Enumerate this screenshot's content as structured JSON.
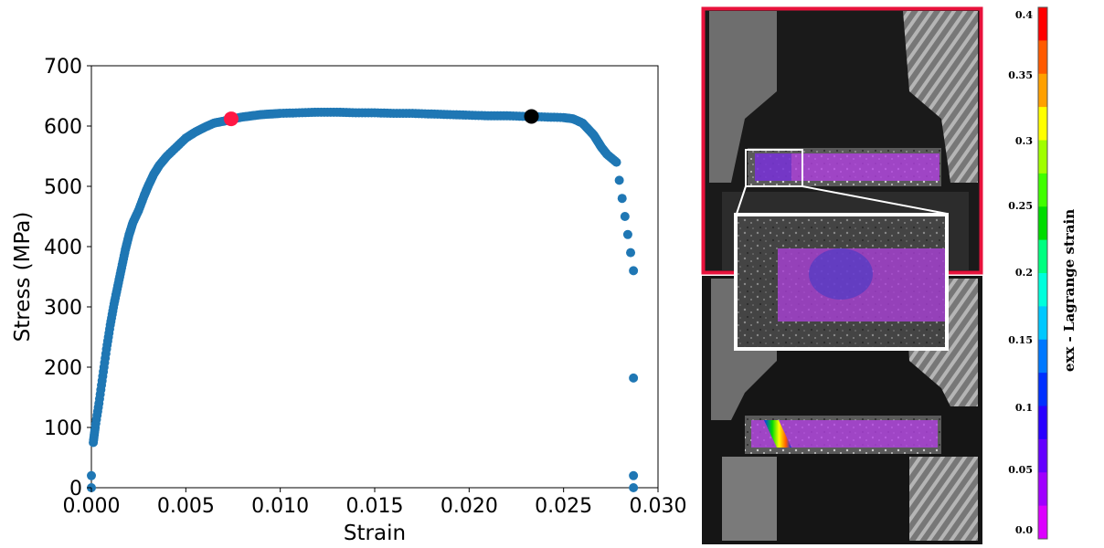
{
  "chart_data": {
    "type": "scatter",
    "xlabel": "Strain",
    "ylabel": "Stress (MPa)",
    "xlim": [
      0.0,
      0.03
    ],
    "ylim": [
      0,
      700
    ],
    "x_ticks": [
      "0.000",
      "0.005",
      "0.010",
      "0.015",
      "0.020",
      "0.025",
      "0.030"
    ],
    "y_ticks": [
      "0",
      "100",
      "200",
      "300",
      "400",
      "500",
      "600",
      "700"
    ],
    "grid": false,
    "series": [
      {
        "color": "#1f77b4",
        "points": [
          [
            0.0,
            0
          ],
          [
            0.0,
            20
          ],
          [
            0.0001,
            75
          ],
          [
            0.0002,
            100
          ],
          [
            0.0004,
            140
          ],
          [
            0.0006,
            185
          ],
          [
            0.0008,
            230
          ],
          [
            0.001,
            270
          ],
          [
            0.0012,
            305
          ],
          [
            0.0014,
            335
          ],
          [
            0.0016,
            365
          ],
          [
            0.0018,
            395
          ],
          [
            0.002,
            420
          ],
          [
            0.0022,
            440
          ],
          [
            0.0025,
            460
          ],
          [
            0.0028,
            485
          ],
          [
            0.003,
            500
          ],
          [
            0.0033,
            520
          ],
          [
            0.0036,
            535
          ],
          [
            0.004,
            550
          ],
          [
            0.0045,
            565
          ],
          [
            0.005,
            580
          ],
          [
            0.0055,
            590
          ],
          [
            0.006,
            598
          ],
          [
            0.0065,
            605
          ],
          [
            0.007,
            608
          ],
          [
            0.0075,
            612
          ],
          [
            0.008,
            615
          ],
          [
            0.0085,
            617
          ],
          [
            0.009,
            619
          ],
          [
            0.0095,
            620
          ],
          [
            0.01,
            621
          ],
          [
            0.011,
            622
          ],
          [
            0.012,
            623
          ],
          [
            0.013,
            623
          ],
          [
            0.014,
            622
          ],
          [
            0.015,
            622
          ],
          [
            0.016,
            621
          ],
          [
            0.017,
            621
          ],
          [
            0.018,
            620
          ],
          [
            0.019,
            619
          ],
          [
            0.02,
            618
          ],
          [
            0.021,
            617
          ],
          [
            0.022,
            617
          ],
          [
            0.023,
            616
          ],
          [
            0.024,
            615
          ],
          [
            0.025,
            614
          ],
          [
            0.0255,
            612
          ],
          [
            0.026,
            605
          ],
          [
            0.0263,
            595
          ],
          [
            0.0266,
            585
          ],
          [
            0.0268,
            575
          ],
          [
            0.027,
            565
          ],
          [
            0.0273,
            553
          ],
          [
            0.0278,
            540
          ],
          [
            0.0287,
            360
          ],
          [
            0.0287,
            182
          ],
          [
            0.0287,
            20
          ],
          [
            0.0287,
            0
          ]
        ]
      }
    ],
    "highlights": [
      {
        "x": 0.0074,
        "y": 612,
        "color": "#ff1744"
      },
      {
        "x": 0.0233,
        "y": 616,
        "color": "#000000"
      }
    ]
  },
  "colorbar": {
    "title": "exx - Lagrange strain",
    "tick_labels": [
      "0.4",
      "0.35",
      "0.3",
      "0.25",
      "0.2",
      "0.15",
      "0.1",
      "0.05",
      "0.0"
    ],
    "colors": [
      "#ff0000",
      "#ff5a00",
      "#ffa000",
      "#ffff00",
      "#a0ff00",
      "#40ff00",
      "#00dc00",
      "#00ff80",
      "#00ffdc",
      "#00c8ff",
      "#0078ff",
      "#0030ff",
      "#2800ff",
      "#6400ff",
      "#a000ff",
      "#dc00ff"
    ]
  },
  "images": {
    "top_frame_color": "#e8123c",
    "overlay_color": "#b040e0"
  }
}
